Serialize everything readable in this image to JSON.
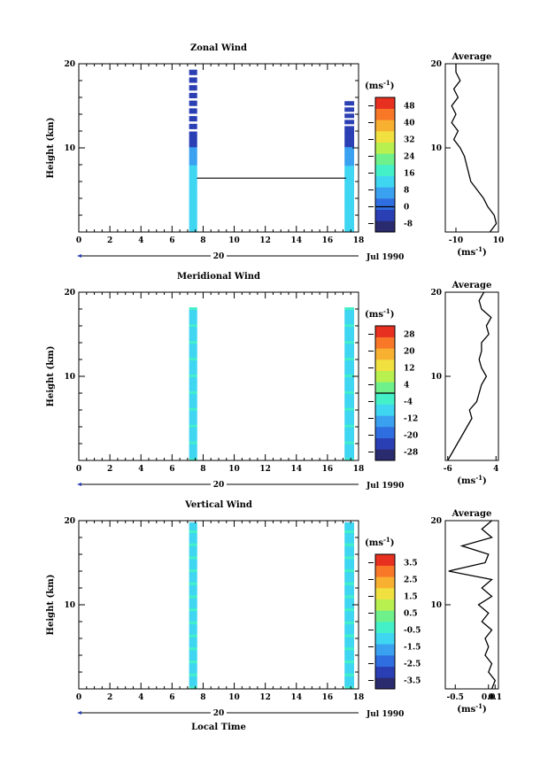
{
  "chart_data": [
    {
      "type": "heatmap",
      "title": "Zonal Wind",
      "ylabel": "Height (km)",
      "xlim": [
        0,
        18
      ],
      "ylim": [
        0,
        20
      ],
      "x_ticks": [
        "0",
        "2",
        "4",
        "6",
        "8",
        "10",
        "12",
        "14",
        "16",
        "18"
      ],
      "y_ticks": [
        "10",
        "20"
      ],
      "date_axis": {
        "day_label": "20",
        "month_label": "Jul 1990"
      },
      "colorbar": {
        "unit": "(ms",
        "unit_sup": "-1",
        "unit_close": ")",
        "ticks": [
          "48",
          "40",
          "32",
          "24",
          "16",
          "8",
          "0",
          "-8"
        ],
        "min": -12,
        "max": 52,
        "zero_line": 0
      },
      "columns": [
        {
          "x_start": 7.1,
          "x_end": 7.6,
          "y_start": 0,
          "y_end": 19.6
        },
        {
          "x_start": 17.1,
          "x_end": 17.7,
          "y_start": 0,
          "y_end": 15.8
        }
      ],
      "annotation_line": {
        "x0": 7.6,
        "x1": 17.2,
        "y": 6.4
      },
      "average_panel": {
        "title": "Average",
        "xlabel": "(ms",
        "xlabel_sup": "-1",
        "xlabel_close": ")",
        "x_ticks": [
          "-10",
          "10"
        ],
        "y_ticks": [
          "10",
          "20"
        ],
        "xlim": [
          -15,
          10
        ],
        "profile_height_km": [
          0,
          1,
          2,
          3,
          4,
          5,
          6,
          7,
          8,
          9,
          10,
          11,
          12,
          13,
          14,
          15,
          16,
          17,
          18,
          19,
          20
        ],
        "profile_value": [
          6,
          9,
          8,
          5,
          3,
          0,
          -3,
          -4,
          -5,
          -6,
          -8,
          -11,
          -9,
          -12,
          -10,
          -12,
          -9,
          -11,
          -8,
          -10,
          -10
        ]
      }
    },
    {
      "type": "heatmap",
      "title": "Meridional Wind",
      "ylabel": "Height (km)",
      "xlim": [
        0,
        18
      ],
      "ylim": [
        0,
        20
      ],
      "x_ticks": [
        "0",
        "2",
        "4",
        "6",
        "8",
        "10",
        "12",
        "14",
        "16",
        "18"
      ],
      "y_ticks": [
        "10",
        "20"
      ],
      "date_axis": {
        "day_label": "20",
        "month_label": "Jul 1990"
      },
      "colorbar": {
        "unit": "(ms",
        "unit_sup": "-1",
        "unit_close": ")",
        "ticks": [
          "28",
          "20",
          "12",
          "4",
          "-4",
          "-12",
          "-20",
          "-28"
        ],
        "min": -32,
        "max": 32,
        "zero_line": 0
      },
      "columns": [
        {
          "x_start": 7.1,
          "x_end": 7.6,
          "y_start": 0,
          "y_end": 18.2
        },
        {
          "x_start": 17.1,
          "x_end": 17.7,
          "y_start": 0,
          "y_end": 18.2
        }
      ],
      "average_panel": {
        "title": "Average",
        "xlabel": "(ms",
        "xlabel_sup": "-1",
        "xlabel_close": ")",
        "x_ticks": [
          "-6",
          "4"
        ],
        "y_ticks": [
          "10",
          "20"
        ],
        "xlim": [
          -6.5,
          4.5
        ],
        "profile_height_km": [
          0,
          1,
          2,
          3,
          4,
          5,
          6,
          7,
          8,
          9,
          10,
          11,
          12,
          13,
          14,
          15,
          16,
          17,
          18,
          19,
          20
        ],
        "profile_value": [
          -6,
          -5,
          -4,
          -3,
          -2,
          -1,
          -1.5,
          0,
          0.5,
          1,
          2,
          1,
          0.5,
          1,
          1,
          2.5,
          2,
          3,
          1,
          0.5,
          1.5
        ]
      }
    },
    {
      "type": "heatmap",
      "title": "Vertical Wind",
      "ylabel": "Height (km)",
      "xlabel": "Local Time",
      "xlim": [
        0,
        18
      ],
      "ylim": [
        0,
        20
      ],
      "x_ticks": [
        "0",
        "2",
        "4",
        "6",
        "8",
        "10",
        "12",
        "14",
        "16",
        "18"
      ],
      "y_ticks": [
        "10",
        "20"
      ],
      "date_axis": {
        "day_label": "20",
        "month_label": "Jul 1990"
      },
      "colorbar": {
        "unit": "(ms",
        "unit_sup": "-1",
        "unit_close": ")",
        "ticks": [
          "3.5",
          "2.5",
          "1.5",
          "0.5",
          "-0.5",
          "-1.5",
          "-2.5",
          "-3.5"
        ],
        "min": -4,
        "max": 4
      },
      "columns": [
        {
          "x_start": 7.1,
          "x_end": 7.6,
          "y_start": 0,
          "y_end": 19.8
        },
        {
          "x_start": 17.1,
          "x_end": 17.7,
          "y_start": 0,
          "y_end": 19.8
        }
      ],
      "average_panel": {
        "title": "Average",
        "xlabel": "(ms",
        "xlabel_sup": "-1",
        "xlabel_close": ")",
        "x_ticks": [
          "-0.5",
          "0.0",
          "0.1"
        ],
        "x_tick_values": [
          -0.5,
          0.0,
          0.1
        ],
        "y_ticks": [
          "10",
          "20"
        ],
        "xlim": [
          -0.65,
          0.15
        ],
        "profile_height_km": [
          0,
          1,
          2,
          3,
          4,
          5,
          6,
          7,
          8,
          9,
          10,
          11,
          12,
          13,
          14,
          15,
          16,
          17,
          18,
          19,
          20
        ],
        "profile_value": [
          0.05,
          0.1,
          0.0,
          0.05,
          -0.05,
          0.0,
          -0.05,
          0.05,
          -0.1,
          0.0,
          -0.15,
          0.05,
          -0.1,
          0.05,
          -0.6,
          -0.05,
          0.0,
          -0.4,
          0.05,
          -0.1,
          0.05
        ]
      }
    }
  ],
  "colors": {
    "rainbow": [
      "#2a2a6e",
      "#2b3fb4",
      "#2f6ee0",
      "#3aa0f0",
      "#3fd6f2",
      "#43f0c8",
      "#6ef08a",
      "#b8f050",
      "#f0e040",
      "#f8b030",
      "#f87828",
      "#e83020"
    ]
  }
}
